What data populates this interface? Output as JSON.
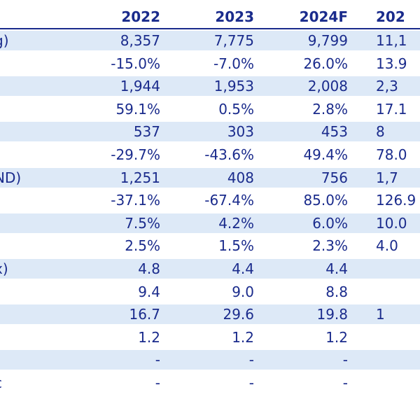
{
  "table": {
    "headers": [
      "2022",
      "2023",
      "2024F",
      "202"
    ],
    "rows": [
      {
        "label": "g)",
        "values": [
          "8,357",
          "7,775",
          "9,799",
          "11,1"
        ]
      },
      {
        "label": "",
        "values": [
          "-15.0%",
          "-7.0%",
          "26.0%",
          "13.9"
        ]
      },
      {
        "label": "",
        "values": [
          "1,944",
          "1,953",
          "2,008",
          "2,3"
        ]
      },
      {
        "label": "",
        "values": [
          "59.1%",
          "0.5%",
          "2.8%",
          "17.1"
        ]
      },
      {
        "label": "",
        "values": [
          "537",
          "303",
          "453",
          "8"
        ]
      },
      {
        "label": "",
        "values": [
          "-29.7%",
          "-43.6%",
          "49.4%",
          "78.0"
        ]
      },
      {
        "label": "ND)",
        "values": [
          "1,251",
          "408",
          "756",
          "1,7"
        ]
      },
      {
        "label": "",
        "values": [
          "-37.1%",
          "-67.4%",
          "85.0%",
          "126.9"
        ]
      },
      {
        "label": "",
        "values": [
          "7.5%",
          "4.2%",
          "6.0%",
          "10.0"
        ]
      },
      {
        "label": "",
        "values": [
          "2.5%",
          "1.5%",
          "2.3%",
          "4.0"
        ]
      },
      {
        "label": "x)",
        "values": [
          "4.8",
          "4.4",
          "4.4",
          ""
        ]
      },
      {
        "label": "",
        "values": [
          "9.4",
          "9.0",
          "8.8",
          ""
        ]
      },
      {
        "label": "",
        "values": [
          "16.7",
          "29.6",
          "19.8",
          "1"
        ]
      },
      {
        "label": "",
        "values": [
          "1.2",
          "1.2",
          "1.2",
          ""
        ]
      },
      {
        "label": "",
        "values": [
          "-",
          "-",
          "-",
          ""
        ]
      },
      {
        "label": "c",
        "values": [
          "-",
          "-",
          "-",
          ""
        ]
      }
    ]
  }
}
